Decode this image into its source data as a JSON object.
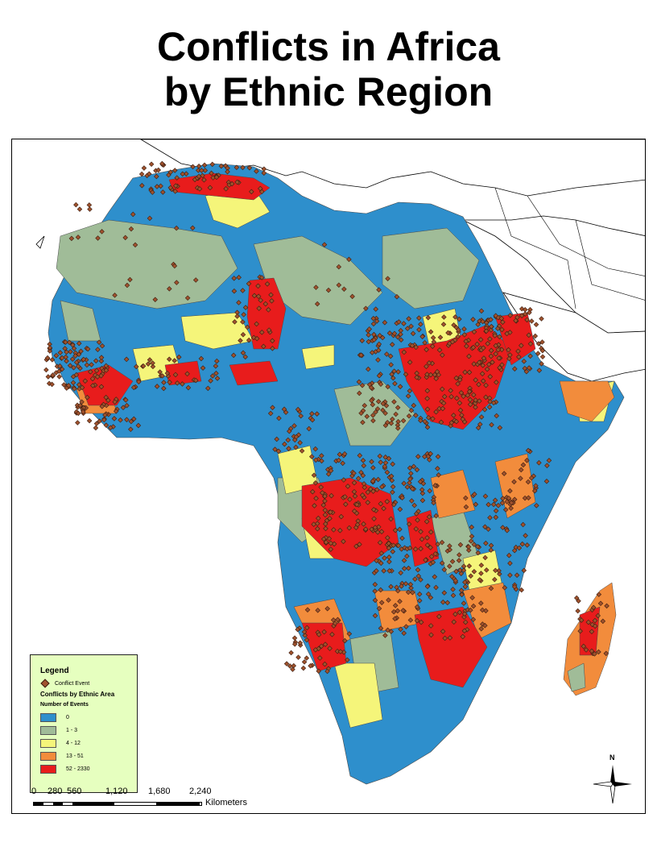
{
  "title": {
    "line1": "Conflicts in Africa",
    "line2": "by Ethnic Region"
  },
  "legend": {
    "title": "Legend",
    "point_label": "Conflict Event",
    "layer_title": "Conflicts by Ethnic Area",
    "field_title": "Number of Events",
    "classes": [
      {
        "label": "0",
        "color": "#2e8fcc"
      },
      {
        "label": "1 - 3",
        "color": "#a0bc98"
      },
      {
        "label": "4 - 12",
        "color": "#f5f57a"
      },
      {
        "label": "13 - 51",
        "color": "#f28c3c"
      },
      {
        "label": "52 - 2330",
        "color": "#e81c1c"
      }
    ],
    "point_color": "#a0522d"
  },
  "scale": {
    "ticks": [
      "0",
      "280",
      "560",
      "1,120",
      "1,680",
      "2,240"
    ],
    "unit": "Kilometers"
  },
  "north_arrow": {
    "label": "N"
  }
}
